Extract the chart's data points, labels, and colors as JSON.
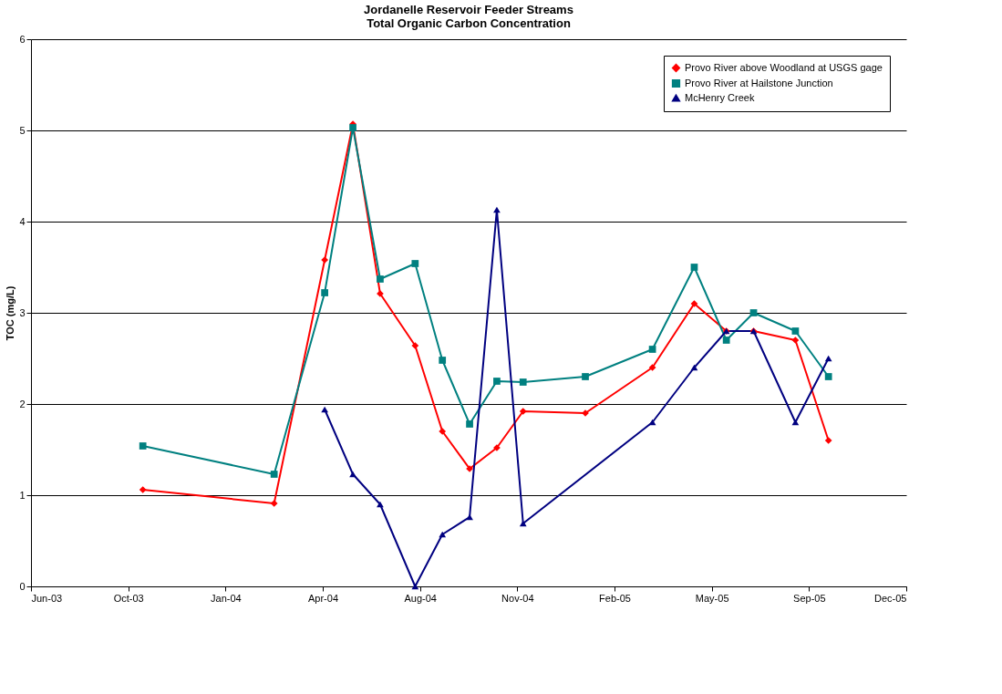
{
  "chart_data": {
    "type": "line",
    "title": "Jordanelle Reservoir Feeder Streams\nTotal Organic Carbon Concentration",
    "ylabel": "TOC (mg/L)",
    "x": [
      "2003-10-23",
      "2004-03-06",
      "2004-04-27",
      "2004-05-26",
      "2004-06-23",
      "2004-07-29",
      "2004-08-26",
      "2004-09-23",
      "2004-10-21",
      "2004-11-17",
      "2005-01-20",
      "2005-03-30",
      "2005-05-12",
      "2005-06-14",
      "2005-07-12",
      "2005-08-24",
      "2005-09-27"
    ],
    "series": [
      {
        "name": "Provo River above Woodland at USGS gage",
        "color": "#ff0000",
        "marker": "diamond",
        "values": [
          1.06,
          0.91,
          3.58,
          5.07,
          3.21,
          2.64,
          1.7,
          1.29,
          1.52,
          1.92,
          1.9,
          2.4,
          3.1,
          2.8,
          2.8,
          2.7,
          1.6
        ]
      },
      {
        "name": "Provo River at Hailstone Junction",
        "color": "#008080",
        "marker": "square",
        "values": [
          1.54,
          1.23,
          3.22,
          5.03,
          3.37,
          3.54,
          2.48,
          1.78,
          2.25,
          2.24,
          2.3,
          2.6,
          3.5,
          2.7,
          3.0,
          2.8,
          2.3
        ]
      },
      {
        "name": "McHenry Creek",
        "color": "#000080",
        "marker": "triangle",
        "x": [
          "2004-04-27",
          "2004-05-26",
          "2004-06-23",
          "2004-07-29",
          "2004-08-26",
          "2004-09-23",
          "2004-10-21",
          "2004-11-17",
          "2005-03-30",
          "2005-05-12",
          "2005-06-14",
          "2005-07-12",
          "2005-08-24",
          "2005-09-27"
        ],
        "values": [
          1.94,
          1.23,
          0.9,
          0.0,
          0.57,
          0.76,
          4.13,
          0.69,
          1.8,
          2.4,
          2.8,
          2.8,
          1.8,
          2.5
        ]
      }
    ],
    "xlim": [
      "2003-06-30",
      "2005-12-16"
    ],
    "xticks": [
      {
        "value": "2003-06-30",
        "label": "Jun-03"
      },
      {
        "value": "2003-10-08",
        "label": "Oct-03"
      },
      {
        "value": "2004-01-16",
        "label": "Jan-04"
      },
      {
        "value": "2004-04-25",
        "label": "Apr-04"
      },
      {
        "value": "2004-08-03",
        "label": "Aug-04"
      },
      {
        "value": "2004-11-11",
        "label": "Nov-04"
      },
      {
        "value": "2005-02-19",
        "label": "Feb-05"
      },
      {
        "value": "2005-05-30",
        "label": "May-05"
      },
      {
        "value": "2005-09-07",
        "label": "Sep-05"
      },
      {
        "value": "2005-12-16",
        "label": "Dec-05"
      }
    ],
    "ylim": [
      0,
      6
    ],
    "yticks": [
      0,
      1,
      2,
      3,
      4,
      5,
      6
    ],
    "grid": "y",
    "legend": "top right"
  }
}
